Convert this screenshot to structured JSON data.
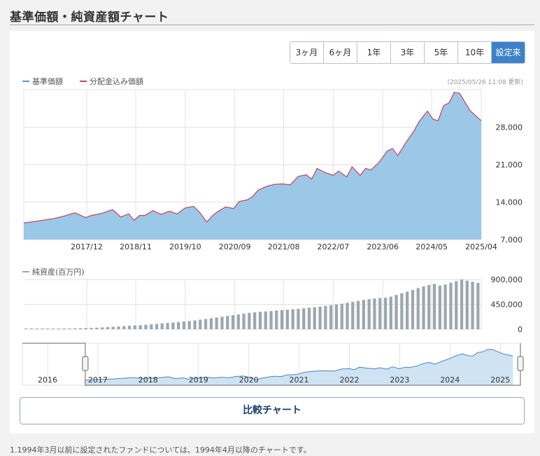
{
  "title": "基準価額・純資産額チャート",
  "ranges": [
    {
      "label": "3ヶ月",
      "active": false
    },
    {
      "label": "6ヶ月",
      "active": false
    },
    {
      "label": "1年",
      "active": false
    },
    {
      "label": "3年",
      "active": false
    },
    {
      "label": "5年",
      "active": false
    },
    {
      "label": "10年",
      "active": false
    },
    {
      "label": "設定来",
      "active": true
    }
  ],
  "legend": {
    "nav": "基準価額",
    "reinvested": "分配金込み価額"
  },
  "updated": "(2025/05/26 11:08 更新)",
  "colors": {
    "nav": "#5b9bd5",
    "reinvested": "#c8475a",
    "area": "#9cc8e8",
    "bars": "#9ea7b0",
    "accent": "#3d82c8"
  },
  "chart_data": [
    {
      "type": "area",
      "xlabel": "",
      "ylabel": "",
      "ylim": [
        7000,
        35000
      ],
      "yticks": [
        "28,000",
        "21,000",
        "14,000",
        "7,000"
      ],
      "ytick_values": [
        28000,
        21000,
        14000,
        7000
      ],
      "xticks": [
        "2017/12",
        "2018/11",
        "2019/10",
        "2020/09",
        "2021/08",
        "2022/07",
        "2023/06",
        "2024/05",
        "2025/04"
      ],
      "xtick_values": [
        2017.92,
        2018.83,
        2019.75,
        2020.67,
        2021.58,
        2022.5,
        2023.42,
        2024.33,
        2025.25
      ],
      "grid": true,
      "series": [
        {
          "name": "基準価額",
          "x": [
            2016.75,
            2016.9,
            2017.1,
            2017.3,
            2017.5,
            2017.7,
            2017.9,
            2018.0,
            2018.2,
            2018.4,
            2018.55,
            2018.7,
            2018.8,
            2018.9,
            2019.0,
            2019.15,
            2019.3,
            2019.45,
            2019.6,
            2019.75,
            2019.9,
            2020.0,
            2020.15,
            2020.25,
            2020.35,
            2020.5,
            2020.65,
            2020.75,
            2020.9,
            2021.0,
            2021.1,
            2021.25,
            2021.4,
            2021.55,
            2021.7,
            2021.85,
            2022.0,
            2022.1,
            2022.2,
            2022.35,
            2022.5,
            2022.6,
            2022.75,
            2022.85,
            2023.0,
            2023.1,
            2023.2,
            2023.35,
            2023.5,
            2023.6,
            2023.7,
            2023.85,
            2024.0,
            2024.1,
            2024.25,
            2024.35,
            2024.45,
            2024.55,
            2024.65,
            2024.75,
            2024.85,
            2024.95,
            2025.05,
            2025.15,
            2025.25
          ],
          "y": [
            10100,
            10300,
            10600,
            10900,
            11400,
            12000,
            11100,
            11500,
            11900,
            12600,
            11200,
            11800,
            10600,
            11500,
            11500,
            12400,
            11700,
            12300,
            11800,
            12900,
            13200,
            12300,
            10300,
            11400,
            12200,
            13100,
            12800,
            14100,
            14400,
            15000,
            16200,
            16900,
            17300,
            17400,
            17200,
            18800,
            19100,
            18300,
            20300,
            19500,
            19000,
            19800,
            18700,
            20600,
            19000,
            20300,
            20000,
            21400,
            23500,
            24000,
            22700,
            25100,
            27300,
            29100,
            31000,
            29500,
            29200,
            32000,
            32500,
            34500,
            34300,
            32600,
            31000,
            30100,
            29200
          ]
        },
        {
          "name": "分配金込み価額",
          "x": [
            2016.75,
            2016.9,
            2017.1,
            2017.3,
            2017.5,
            2017.7,
            2017.9,
            2018.0,
            2018.2,
            2018.4,
            2018.55,
            2018.7,
            2018.8,
            2018.9,
            2019.0,
            2019.15,
            2019.3,
            2019.45,
            2019.6,
            2019.75,
            2019.9,
            2020.0,
            2020.15,
            2020.25,
            2020.35,
            2020.5,
            2020.65,
            2020.75,
            2020.9,
            2021.0,
            2021.1,
            2021.25,
            2021.4,
            2021.55,
            2021.7,
            2021.85,
            2022.0,
            2022.1,
            2022.2,
            2022.35,
            2022.5,
            2022.6,
            2022.75,
            2022.85,
            2023.0,
            2023.1,
            2023.2,
            2023.35,
            2023.5,
            2023.6,
            2023.7,
            2023.85,
            2024.0,
            2024.1,
            2024.25,
            2024.35,
            2024.45,
            2024.55,
            2024.65,
            2024.75,
            2024.85,
            2024.95,
            2025.05,
            2025.15,
            2025.25
          ],
          "y": [
            10100,
            10300,
            10600,
            10900,
            11400,
            12000,
            11100,
            11500,
            11900,
            12600,
            11200,
            11800,
            10600,
            11500,
            11500,
            12400,
            11700,
            12300,
            11800,
            12900,
            13200,
            12300,
            10300,
            11400,
            12200,
            13100,
            12800,
            14100,
            14400,
            15000,
            16200,
            16900,
            17300,
            17400,
            17200,
            18800,
            19100,
            18300,
            20300,
            19500,
            19000,
            19800,
            18700,
            20600,
            19000,
            20300,
            20000,
            21400,
            23500,
            24000,
            22700,
            25100,
            27300,
            29100,
            31000,
            29500,
            29200,
            32000,
            32500,
            34500,
            34300,
            32600,
            31000,
            30100,
            29200
          ]
        }
      ]
    },
    {
      "type": "bar",
      "ylim": [
        0,
        900000
      ],
      "yticks": [
        "900,000",
        "450,000",
        "0"
      ],
      "ytick_values": [
        900000,
        450000,
        0
      ],
      "legend": "純資産(百万円)",
      "series": [
        {
          "name": "純資産(百万円)",
          "values": [
            3000,
            3500,
            4000,
            5000,
            6000,
            7000,
            9000,
            11000,
            13000,
            15000,
            18000,
            21000,
            24000,
            28000,
            33000,
            38000,
            44000,
            50000,
            56000,
            62000,
            68000,
            74000,
            81000,
            88000,
            96000,
            105000,
            113000,
            122000,
            131000,
            140000,
            150000,
            160000,
            172000,
            185000,
            198000,
            212000,
            226000,
            240000,
            255000,
            268000,
            282000,
            296000,
            305000,
            315000,
            322000,
            330000,
            338000,
            346000,
            354000,
            362000,
            370000,
            378000,
            388000,
            398000,
            410000,
            422000,
            435000,
            448000,
            462000,
            478000,
            495000,
            512000,
            530000,
            545000,
            555000,
            565000,
            570000,
            590000,
            620000,
            650000,
            680000,
            710000,
            745000,
            775000,
            800000,
            820000,
            790000,
            810000,
            840000,
            870000,
            900000,
            880000,
            860000,
            840000
          ]
        }
      ]
    },
    {
      "type": "area",
      "role": "navigator",
      "xticks": [
        "2016",
        "2017",
        "2018",
        "2019",
        "2020",
        "2021",
        "2022",
        "2023",
        "2024",
        "2025"
      ],
      "xtick_values": [
        2016,
        2017,
        2018,
        2019,
        2020,
        2021,
        2022,
        2023,
        2024,
        2025
      ],
      "selection": [
        2016.75,
        2025.4
      ]
    }
  ],
  "compare_button": "比較チャート",
  "footnote": "1.1994年3月以前に設定されたファンドについては、1994年4月以降のチャートです。"
}
